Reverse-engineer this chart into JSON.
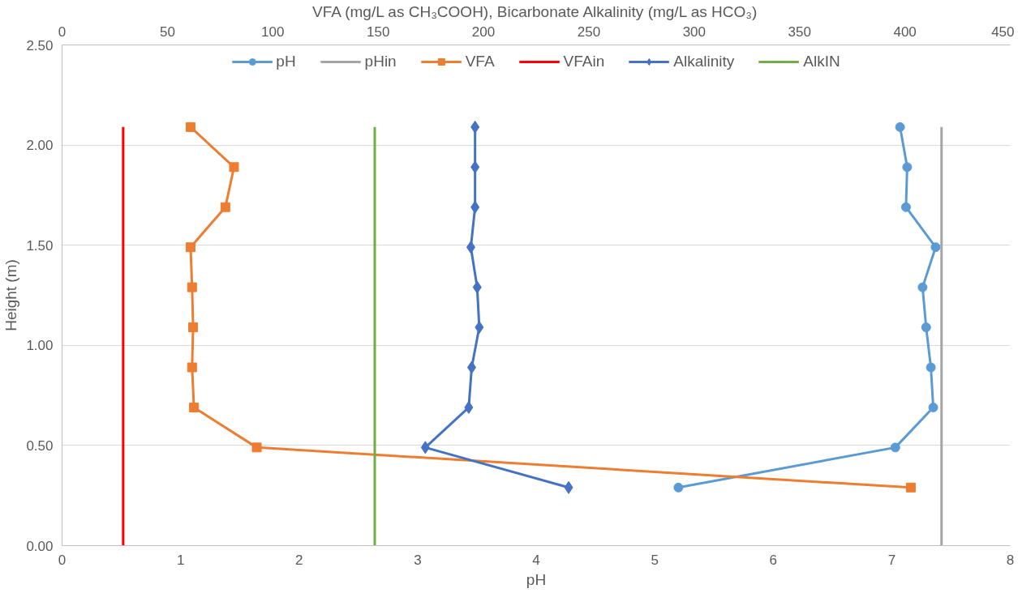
{
  "chart_data": {
    "type": "line",
    "xlabel": "pH",
    "x2label": "VFA (mg/L as CH₃COOH), Bicarbonate Alkalinity (mg/L as HCO₃)",
    "ylabel": "Height (m)",
    "xlim": [
      0,
      8
    ],
    "xticks": [
      0,
      1,
      2,
      3,
      4,
      5,
      6,
      7,
      8
    ],
    "x2lim": [
      0,
      450
    ],
    "x2ticks": [
      0,
      50,
      100,
      150,
      200,
      250,
      300,
      350,
      400,
      450
    ],
    "ylim": [
      0,
      2.5
    ],
    "yticks": [
      {
        "value": 0,
        "label": "0.00"
      },
      {
        "value": 0.5,
        "label": "0.50"
      },
      {
        "value": 1,
        "label": "1.00"
      },
      {
        "value": 1.5,
        "label": "1.50"
      },
      {
        "value": 2,
        "label": "2.00"
      },
      {
        "value": 2.5,
        "label": "2.50"
      }
    ],
    "grid": "y",
    "legend": "top",
    "series": [
      {
        "name": "pH",
        "color": "#5b9bd5",
        "marker": "circle",
        "x": [
          7.07,
          7.13,
          7.12,
          7.37,
          7.26,
          7.29,
          7.33,
          7.35,
          7.03,
          5.2
        ],
        "values": [
          2.09,
          1.89,
          1.69,
          1.49,
          1.29,
          1.09,
          0.89,
          0.69,
          0.49,
          0.29
        ]
      },
      {
        "name": "pHin",
        "color": "#a5a5a5",
        "marker": "none",
        "x": [
          7.42,
          7.42
        ],
        "values": [
          0,
          2.09
        ]
      },
      {
        "name": "VFA",
        "color": "#ed7d31",
        "marker": "square",
        "axis": "x2",
        "x": [
          61,
          81.6,
          77.5,
          61,
          61.7,
          62.2,
          61.7,
          62.6,
          92.4,
          402.8
        ],
        "values": [
          2.09,
          1.89,
          1.69,
          1.49,
          1.29,
          1.09,
          0.89,
          0.69,
          0.49,
          0.29
        ]
      },
      {
        "name": "VFAin",
        "color": "#ff0000",
        "marker": "none",
        "axis": "x2",
        "x": [
          29,
          29
        ],
        "values": [
          0,
          2.09
        ]
      },
      {
        "name": "Alkalinity",
        "color": "#4472c4",
        "marker": "diamond",
        "axis": "x2",
        "x": [
          196,
          196,
          196,
          194,
          197,
          198,
          194.4,
          193,
          172.4,
          240.4
        ],
        "values": [
          2.09,
          1.89,
          1.69,
          1.49,
          1.29,
          1.09,
          0.89,
          0.69,
          0.49,
          0.29
        ]
      },
      {
        "name": "AlkIN",
        "color": "#70ad47",
        "marker": "none",
        "axis": "x2",
        "x": [
          148.4,
          148.4
        ],
        "values": [
          0,
          2.09
        ]
      }
    ]
  }
}
